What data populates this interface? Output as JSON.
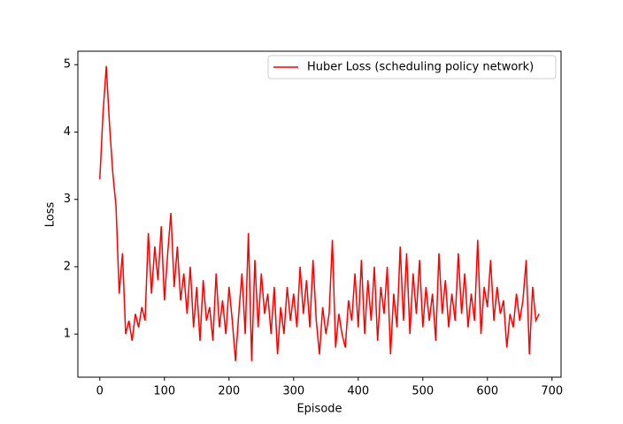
{
  "chart_data": {
    "type": "line",
    "xlabel": "Episode",
    "ylabel": "Loss",
    "legend": "upper right",
    "xlim": [
      -34,
      714
    ],
    "ylim": [
      0.36,
      5.2
    ],
    "xticks": [
      0,
      100,
      200,
      300,
      400,
      500,
      600,
      700
    ],
    "yticks": [
      1,
      2,
      3,
      4,
      5
    ],
    "x": [
      0,
      5,
      10,
      15,
      20,
      25,
      30,
      35,
      40,
      45,
      50,
      55,
      60,
      65,
      70,
      75,
      80,
      85,
      90,
      95,
      100,
      105,
      110,
      115,
      120,
      125,
      130,
      135,
      140,
      145,
      150,
      155,
      160,
      165,
      170,
      175,
      180,
      185,
      190,
      195,
      200,
      205,
      210,
      215,
      220,
      225,
      230,
      235,
      240,
      245,
      250,
      255,
      260,
      265,
      270,
      275,
      280,
      285,
      290,
      295,
      300,
      305,
      310,
      315,
      320,
      325,
      330,
      335,
      340,
      345,
      350,
      355,
      360,
      365,
      370,
      375,
      380,
      385,
      390,
      395,
      400,
      405,
      410,
      415,
      420,
      425,
      430,
      435,
      440,
      445,
      450,
      455,
      460,
      465,
      470,
      475,
      480,
      485,
      490,
      495,
      500,
      505,
      510,
      515,
      520,
      525,
      530,
      535,
      540,
      545,
      550,
      555,
      560,
      565,
      570,
      575,
      580,
      585,
      590,
      595,
      600,
      605,
      610,
      615,
      620,
      625,
      630,
      635,
      640,
      645,
      650,
      655,
      660,
      665,
      670,
      675,
      680
    ],
    "series": [
      {
        "name": "Huber Loss (scheduling policy network)",
        "color": "#ff0000",
        "values": [
          3.3,
          4.3,
          4.98,
          4.1,
          3.4,
          2.9,
          1.6,
          2.2,
          1.0,
          1.2,
          0.9,
          1.3,
          1.1,
          1.4,
          1.2,
          2.5,
          1.6,
          2.3,
          1.8,
          2.6,
          1.5,
          2.2,
          2.8,
          1.7,
          2.3,
          1.5,
          1.9,
          1.3,
          2.0,
          1.1,
          1.7,
          0.9,
          1.8,
          1.2,
          1.4,
          0.9,
          1.9,
          1.1,
          1.5,
          1.0,
          1.7,
          1.2,
          0.6,
          1.3,
          1.9,
          1.0,
          2.5,
          0.6,
          2.1,
          1.1,
          1.9,
          1.3,
          1.6,
          1.0,
          1.7,
          0.7,
          1.4,
          1.0,
          1.7,
          1.2,
          1.6,
          1.1,
          2.0,
          1.3,
          1.8,
          1.1,
          2.1,
          1.2,
          0.7,
          1.4,
          1.0,
          1.3,
          2.4,
          0.8,
          1.3,
          1.0,
          0.8,
          1.5,
          1.2,
          1.9,
          1.1,
          2.1,
          1.0,
          1.8,
          1.2,
          2.0,
          0.9,
          1.7,
          1.3,
          2.0,
          0.7,
          1.6,
          1.1,
          2.3,
          1.2,
          2.2,
          1.0,
          1.9,
          1.3,
          2.1,
          1.1,
          1.7,
          1.2,
          1.6,
          0.9,
          2.2,
          1.3,
          1.8,
          1.1,
          1.6,
          1.2,
          2.2,
          1.3,
          1.9,
          1.1,
          1.6,
          1.2,
          2.4,
          1.0,
          1.7,
          1.4,
          2.1,
          1.2,
          1.7,
          1.3,
          1.5,
          0.8,
          1.3,
          1.1,
          1.6,
          1.2,
          1.5,
          2.1,
          0.7,
          1.7,
          1.2,
          1.3
        ]
      }
    ]
  }
}
